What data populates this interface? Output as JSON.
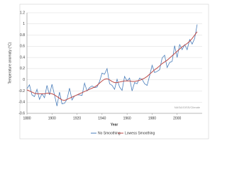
{
  "chart_data": {
    "type": "line",
    "xlabel": "Year",
    "ylabel": "Temperature anomaly (°C)",
    "annotation": "NASA/GISS/Climate",
    "x": [
      1880,
      1882,
      1884,
      1886,
      1888,
      1890,
      1892,
      1894,
      1896,
      1898,
      1900,
      1902,
      1904,
      1906,
      1908,
      1910,
      1912,
      1914,
      1916,
      1918,
      1920,
      1922,
      1924,
      1926,
      1928,
      1930,
      1932,
      1934,
      1936,
      1938,
      1940,
      1942,
      1944,
      1946,
      1948,
      1950,
      1952,
      1954,
      1956,
      1958,
      1960,
      1962,
      1964,
      1966,
      1968,
      1970,
      1972,
      1974,
      1976,
      1978,
      1980,
      1982,
      1984,
      1986,
      1988,
      1990,
      1992,
      1994,
      1996,
      1998,
      2000,
      2002,
      2004,
      2006,
      2008,
      2010,
      2012,
      2014,
      2016
    ],
    "series": [
      {
        "name": "No Smoothing",
        "color": "#4a7ebb",
        "values": [
          -0.16,
          -0.09,
          -0.27,
          -0.3,
          -0.17,
          -0.35,
          -0.25,
          -0.32,
          -0.1,
          -0.27,
          -0.08,
          -0.27,
          -0.47,
          -0.22,
          -0.43,
          -0.42,
          -0.35,
          -0.15,
          -0.36,
          -0.29,
          -0.27,
          -0.27,
          -0.28,
          -0.06,
          -0.2,
          -0.14,
          -0.11,
          -0.14,
          -0.13,
          -0.03,
          0.12,
          0.1,
          0.2,
          -0.07,
          -0.1,
          -0.17,
          0.01,
          -0.13,
          -0.19,
          0.06,
          -0.02,
          0.03,
          -0.2,
          -0.05,
          -0.07,
          0.03,
          0.01,
          -0.07,
          -0.1,
          0.07,
          0.26,
          0.13,
          0.15,
          0.18,
          0.39,
          0.44,
          0.22,
          0.31,
          0.33,
          0.61,
          0.4,
          0.63,
          0.54,
          0.63,
          0.54,
          0.72,
          0.64,
          0.74,
          0.99
        ]
      },
      {
        "name": "Lowess Smoothing",
        "color": "#be4b48",
        "values": [
          -0.18,
          -0.2,
          -0.22,
          -0.24,
          -0.25,
          -0.25,
          -0.25,
          -0.25,
          -0.24,
          -0.24,
          -0.25,
          -0.27,
          -0.3,
          -0.33,
          -0.36,
          -0.37,
          -0.35,
          -0.33,
          -0.31,
          -0.29,
          -0.27,
          -0.25,
          -0.23,
          -0.21,
          -0.19,
          -0.17,
          -0.15,
          -0.13,
          -0.1,
          -0.06,
          -0.02,
          0.01,
          0.02,
          0.0,
          -0.03,
          -0.05,
          -0.05,
          -0.04,
          -0.03,
          -0.02,
          -0.02,
          -0.02,
          -0.03,
          -0.03,
          -0.02,
          -0.01,
          0.01,
          0.03,
          0.06,
          0.1,
          0.14,
          0.18,
          0.21,
          0.25,
          0.29,
          0.32,
          0.35,
          0.39,
          0.43,
          0.47,
          0.51,
          0.55,
          0.59,
          0.62,
          0.65,
          0.69,
          0.74,
          0.8,
          0.86
        ]
      }
    ],
    "xlim": [
      1880,
      2020
    ],
    "xticks": [
      1880,
      1900,
      1920,
      1940,
      1960,
      1980,
      2000
    ],
    "ylim": [
      -0.6,
      1.2
    ],
    "yticks": [
      -0.6,
      -0.4,
      -0.2,
      0,
      0.2,
      0.4,
      0.6,
      0.8,
      1,
      1.2
    ],
    "grid": true,
    "legend": "bottom"
  }
}
